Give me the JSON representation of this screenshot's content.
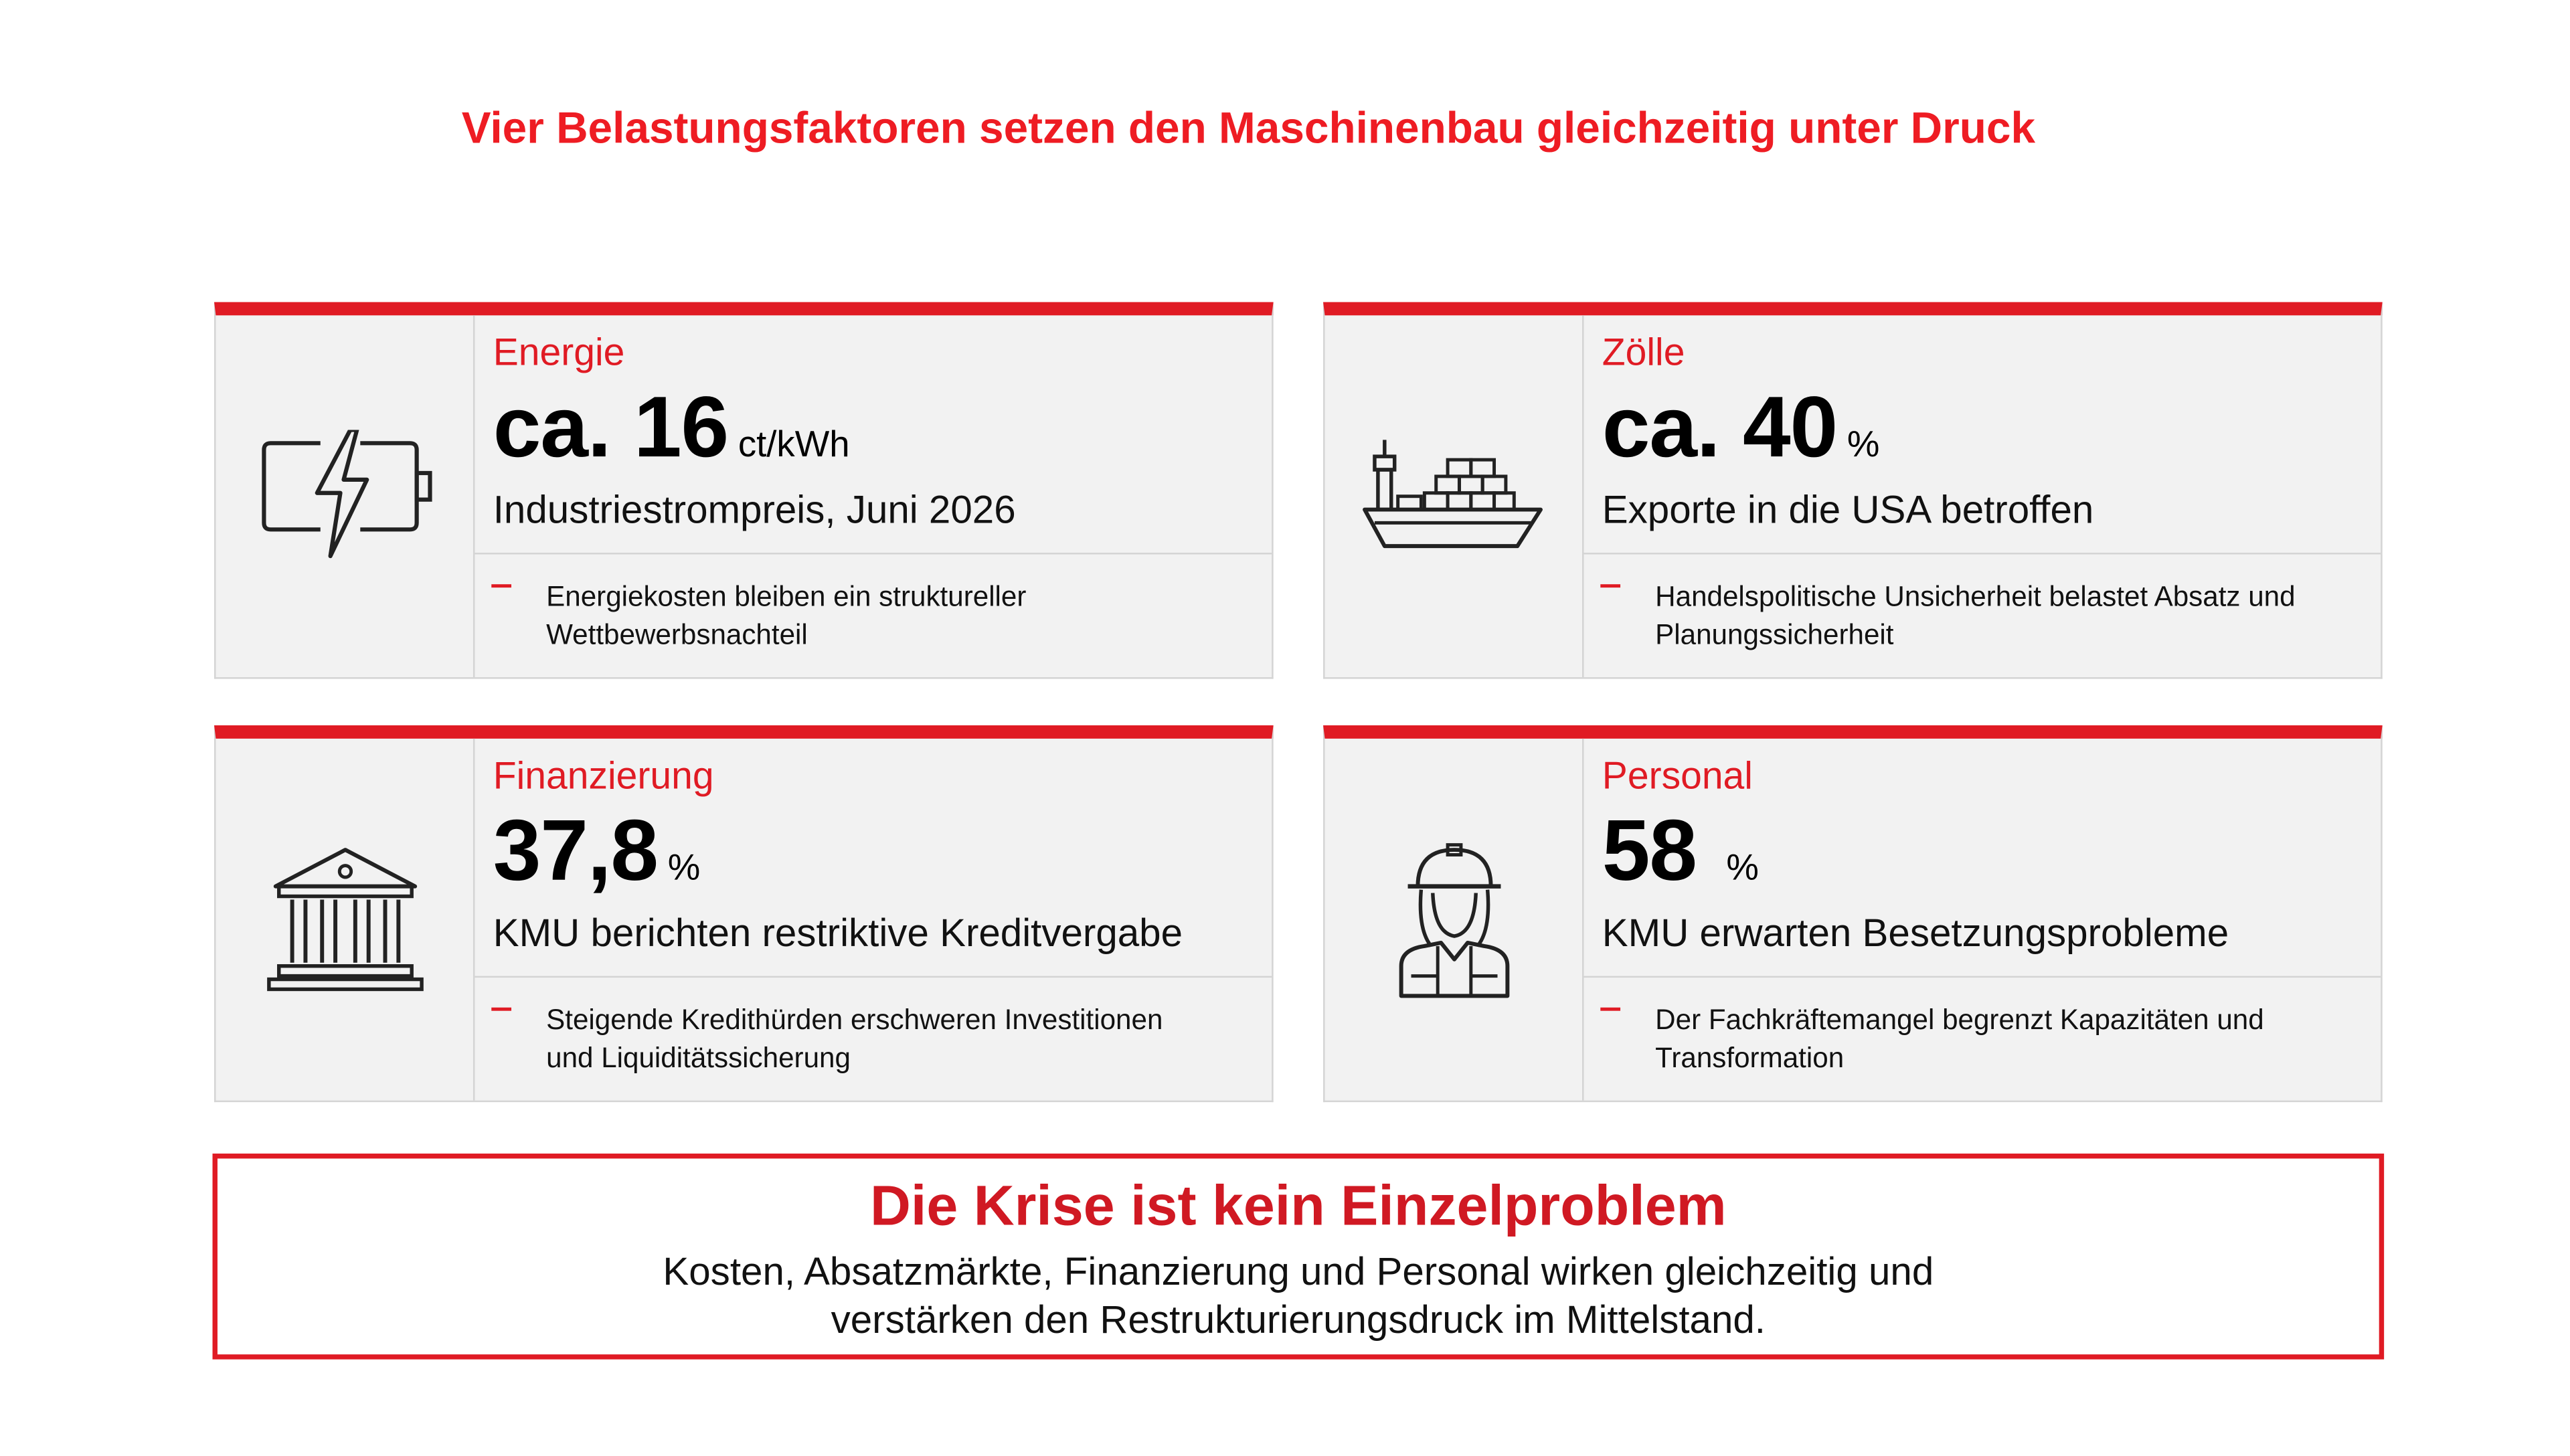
{
  "page": {
    "title": "Vier Belastungsfaktoren setzen den Maschinenbau gleichzeitig unter Druck"
  },
  "cards": [
    {
      "icon": "battery-lightning-icon",
      "label": "Energie",
      "value": "ca. 16",
      "unit": "ct/kWh",
      "caption": "Industriestrompreis, Juni 2026",
      "bullet_line1": "Energiekosten bleiben ein struktureller",
      "bullet_line2": "Wettbewerbsnachteil"
    },
    {
      "icon": "cargo-ship-icon",
      "label": "Zölle",
      "value": "ca. 40",
      "unit": "%",
      "caption": "Exporte in die USA betroffen",
      "bullet_line1": "Handelspolitische Unsicherheit belastet Absatz und",
      "bullet_line2": "Planungssicherheit"
    },
    {
      "icon": "bank-building-icon",
      "label": "Finanzierung",
      "value": "37,8",
      "unit": "%",
      "caption": "KMU berichten restriktive Kreditvergabe",
      "bullet_line1": "Steigende Kredithürden erschweren Investitionen",
      "bullet_line2": "und Liquiditätssicherung"
    },
    {
      "icon": "worker-helmet-icon",
      "label": "Personal",
      "value": "58",
      "unit": "%",
      "caption": "KMU erwarten Besetzungsprobleme",
      "bullet_line1": "Der Fachkräftemangel begrenzt Kapazitäten und",
      "bullet_line2": "Transformation"
    }
  ],
  "summary": {
    "title": "Die Krise ist kein Einzelproblem",
    "line1": "Kosten, Absatzmärkte, Finanzierung und Personal wirken gleichzeitig und",
    "line2": "verstärken den Restrukturierungsdruck im Mittelstand."
  },
  "colors": {
    "accent": "#e01b24",
    "title": "#ee1c23",
    "card_bg": "#f2f2f2",
    "border": "#d4d4d4"
  }
}
